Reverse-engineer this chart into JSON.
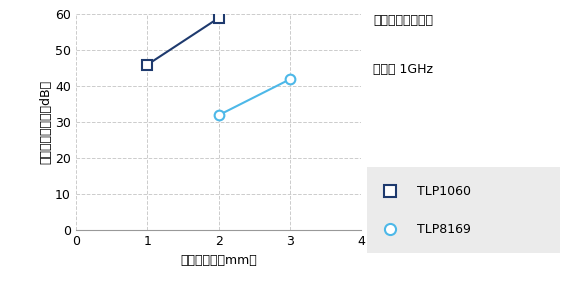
{
  "xlabel": "成形品厚み（mm）",
  "ylabel": "電波しゃへい性（dB）",
  "annotation_line1": "アドバンテスト法",
  "annotation_line2": "周波数 1GHz",
  "xlim": [
    0,
    4
  ],
  "ylim": [
    0,
    60
  ],
  "xticks": [
    0,
    1,
    2,
    3,
    4
  ],
  "yticks": [
    0,
    10,
    20,
    30,
    40,
    50,
    60
  ],
  "series": [
    {
      "label": "TLP1060",
      "x": [
        1,
        2
      ],
      "y": [
        46,
        59
      ],
      "color": "#1e3a6e",
      "marker": "s",
      "marker_facecolor": "white",
      "marker_edgecolor": "#1e3a6e",
      "linewidth": 1.5,
      "markersize": 7
    },
    {
      "label": "TLP8169",
      "x": [
        2,
        3
      ],
      "y": [
        32,
        42
      ],
      "color": "#4db8e8",
      "marker": "o",
      "marker_facecolor": "white",
      "marker_edgecolor": "#4db8e8",
      "linewidth": 1.5,
      "markersize": 7
    }
  ],
  "grid_color": "#cccccc",
  "grid_linestyle": "--",
  "background_color": "#ffffff",
  "legend_facecolor": "#ebebeb"
}
